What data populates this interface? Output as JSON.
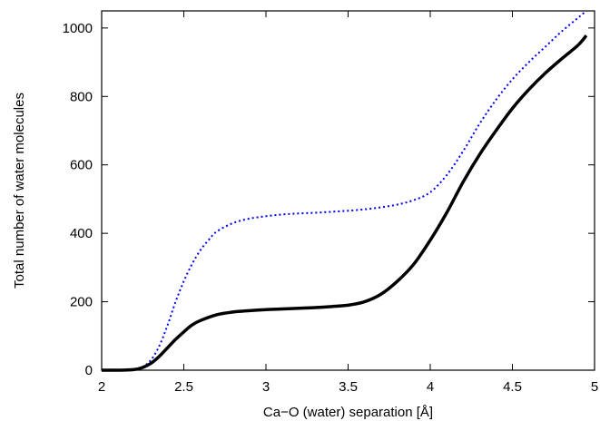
{
  "chart_data": {
    "type": "line",
    "xlabel": "Ca−O (water) separation [Å]",
    "ylabel": "Total number of water molecules",
    "xlim": [
      2,
      5
    ],
    "ylim": [
      0,
      1050
    ],
    "x_ticks": [
      "2",
      "2.5",
      "3",
      "3.5",
      "4",
      "4.5",
      "5"
    ],
    "y_ticks": [
      "0",
      "200",
      "400",
      "600",
      "800",
      "1000"
    ],
    "grid": false,
    "legend": "none",
    "series": [
      {
        "style": "dotted",
        "color": "#0000ee",
        "x": [
          2.0,
          2.1,
          2.2,
          2.25,
          2.3,
          2.35,
          2.4,
          2.45,
          2.5,
          2.55,
          2.6,
          2.65,
          2.7,
          2.8,
          2.9,
          3.0,
          3.1,
          3.2,
          3.3,
          3.4,
          3.5,
          3.6,
          3.7,
          3.8,
          3.9,
          4.0,
          4.1,
          4.2,
          4.3,
          4.4,
          4.5,
          4.6,
          4.7,
          4.8,
          4.9,
          4.95
        ],
        "y": [
          0,
          0,
          3,
          10,
          30,
          70,
          130,
          200,
          260,
          310,
          350,
          380,
          405,
          430,
          443,
          450,
          455,
          458,
          460,
          463,
          466,
          470,
          476,
          484,
          497,
          520,
          570,
          640,
          720,
          790,
          850,
          900,
          945,
          990,
          1030,
          1050
        ]
      },
      {
        "style": "solid",
        "color": "#000000",
        "x": [
          2.0,
          2.1,
          2.2,
          2.25,
          2.3,
          2.35,
          2.4,
          2.45,
          2.5,
          2.55,
          2.6,
          2.7,
          2.8,
          2.9,
          3.0,
          3.1,
          3.2,
          3.3,
          3.4,
          3.5,
          3.6,
          3.7,
          3.8,
          3.9,
          4.0,
          4.1,
          4.2,
          4.3,
          4.4,
          4.5,
          4.6,
          4.7,
          4.8,
          4.9,
          4.95
        ],
        "y": [
          0,
          0,
          2,
          8,
          20,
          40,
          65,
          90,
          112,
          132,
          145,
          162,
          170,
          174,
          177,
          179,
          181,
          183,
          186,
          190,
          200,
          222,
          260,
          310,
          380,
          460,
          550,
          630,
          700,
          765,
          820,
          868,
          910,
          950,
          978
        ]
      }
    ]
  }
}
